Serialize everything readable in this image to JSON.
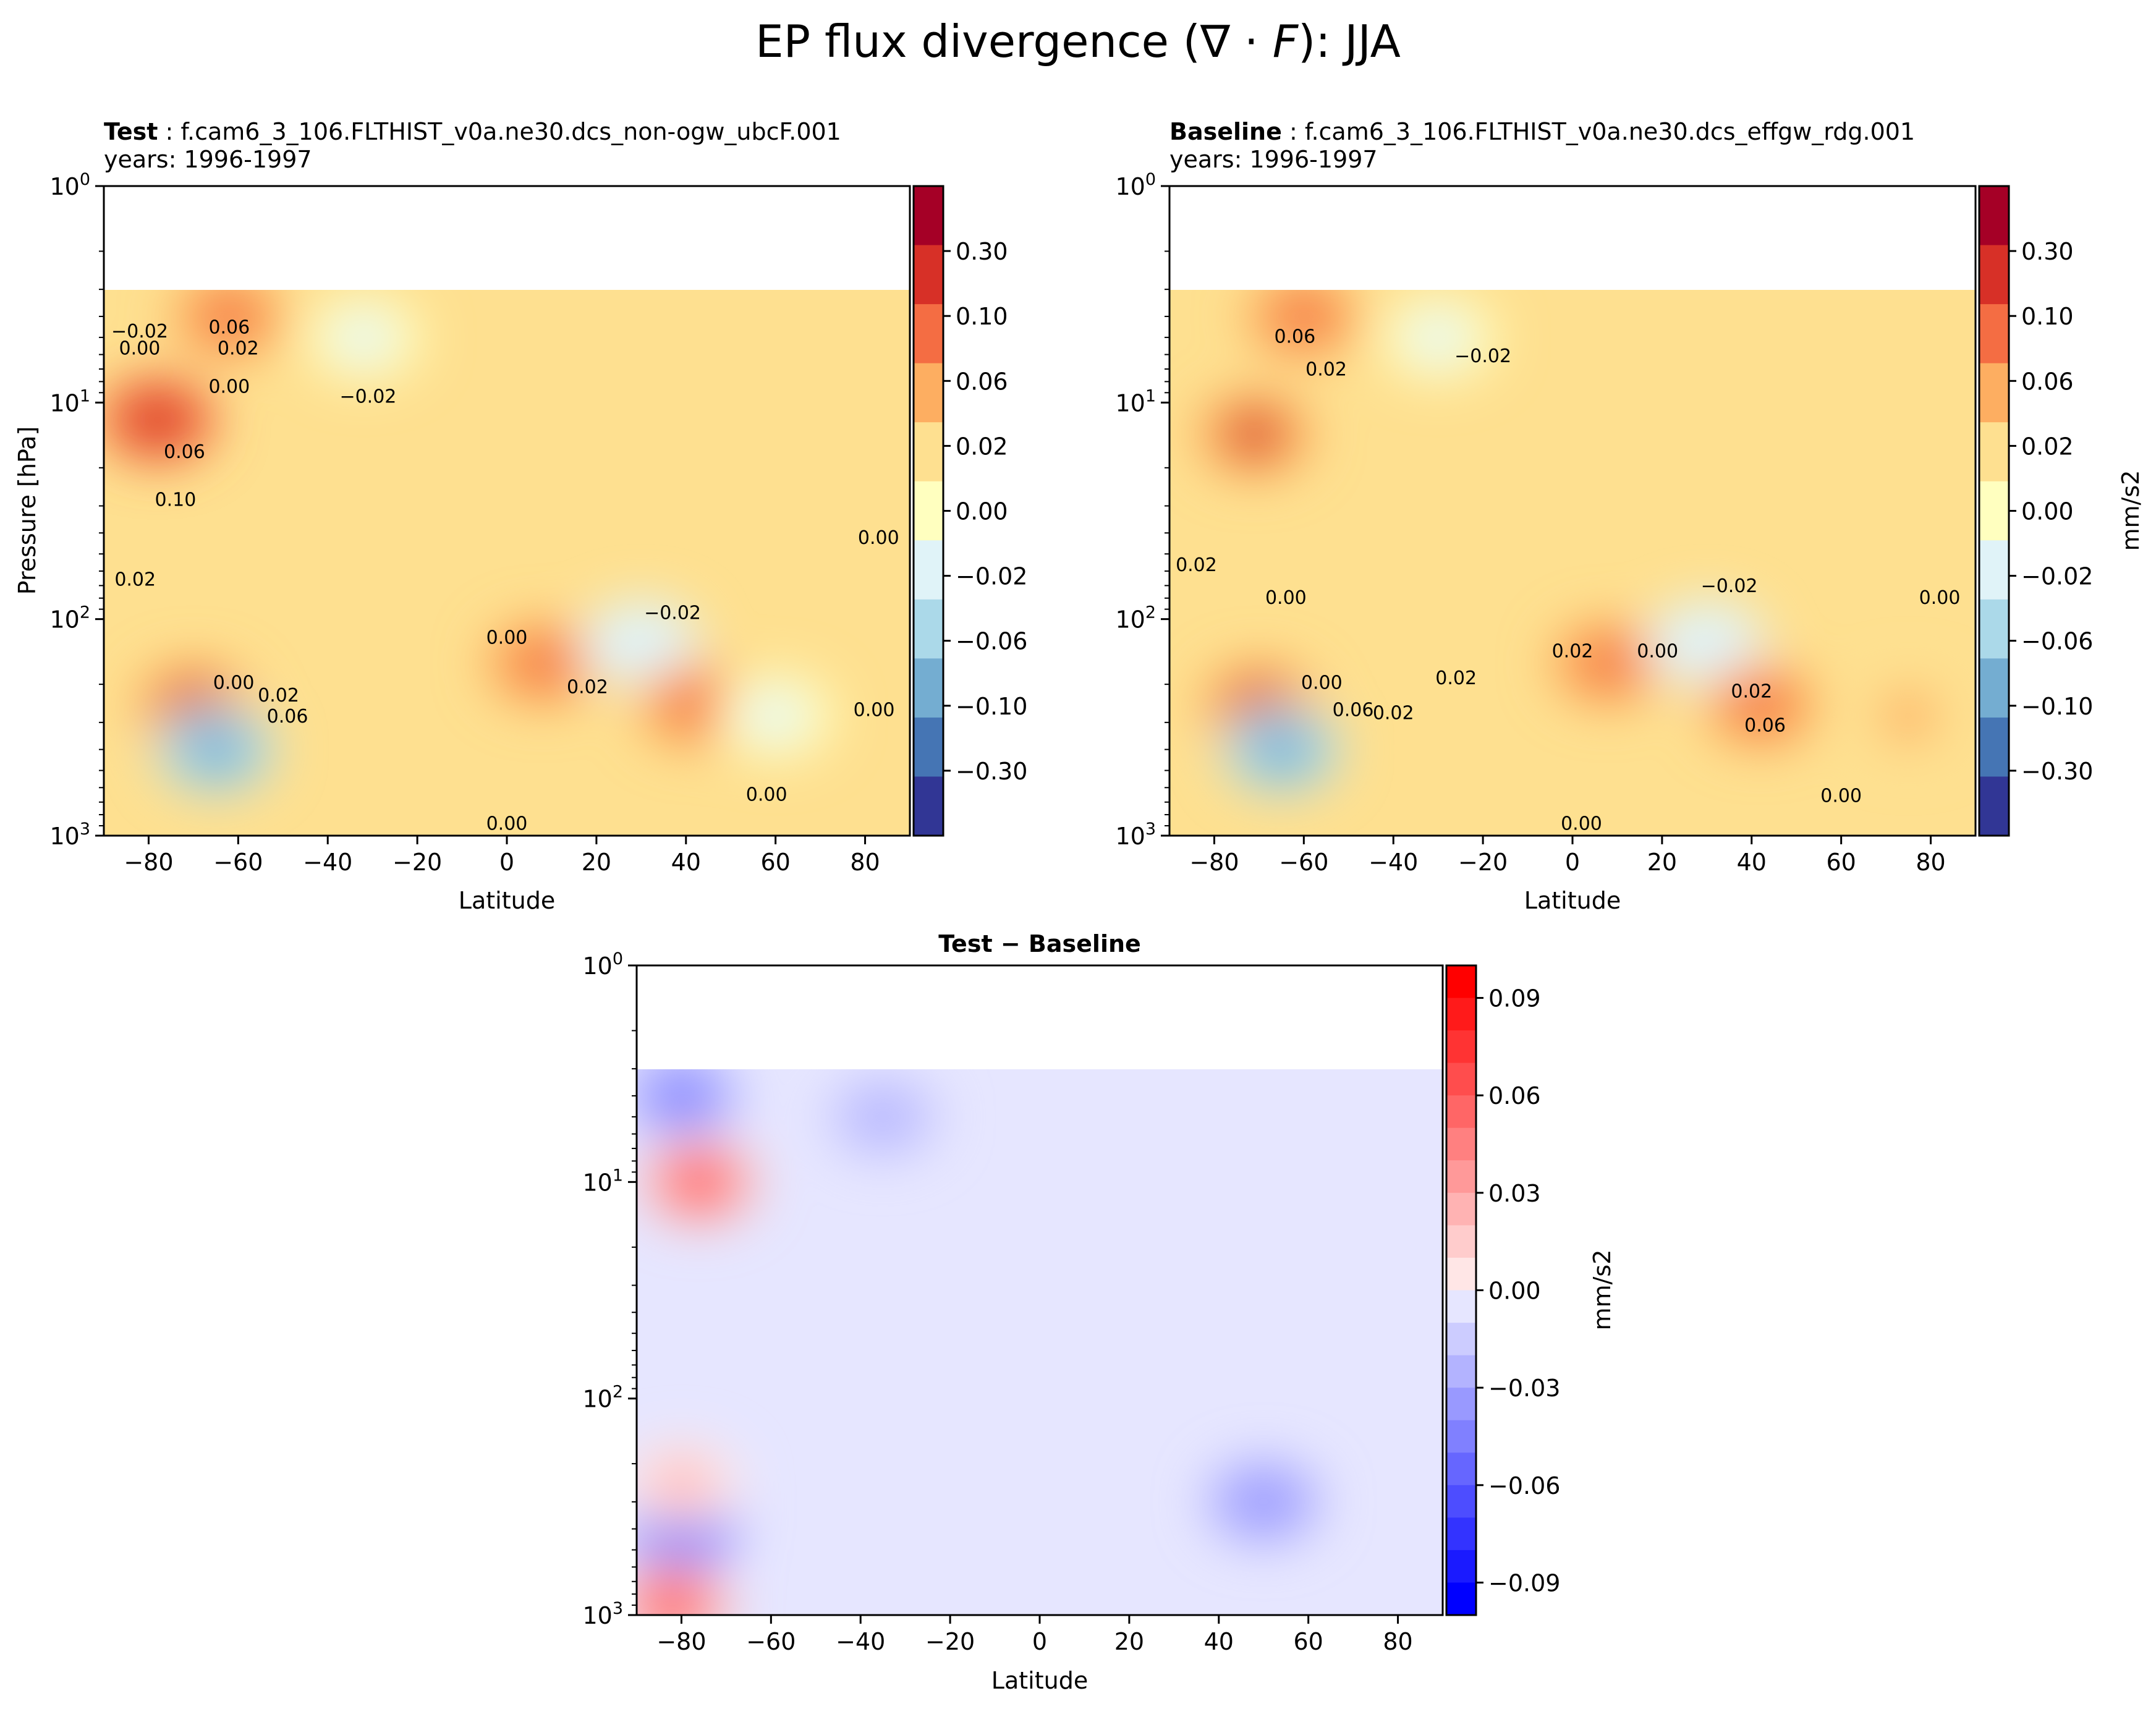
{
  "figure": {
    "title_main": "EP flux divergence (",
    "title_nabla": "∇",
    "title_dot": " · ",
    "title_F": "F",
    "title_tail": "): JJA"
  },
  "chart_data": [
    {
      "id": "test",
      "type": "heatmap",
      "title_bold": "Test",
      "title_rest": " : f.cam6_3_106.FLTHIST_v0a.ne30.dcs_non-ogw_ubcF.001",
      "subtitle": "years: 1996-1997",
      "xlabel": "Latitude",
      "ylabel": "Pressure [hPa]",
      "xlim": [
        -90,
        90
      ],
      "ylim": [
        1000,
        1
      ],
      "yscale": "log",
      "x_ticks": [
        -80,
        -60,
        -40,
        -20,
        0,
        20,
        40,
        60,
        80
      ],
      "x_tick_labels": [
        "−80",
        "−60",
        "−40",
        "−20",
        "0",
        "20",
        "40",
        "60",
        "80"
      ],
      "y_ticks": [
        1,
        10,
        100,
        1000
      ],
      "y_tick_bases": [
        "10",
        "10",
        "10",
        "10"
      ],
      "y_tick_exps": [
        "0",
        "1",
        "2",
        "3"
      ],
      "colorbar": {
        "levels": [
          -0.3,
          -0.1,
          -0.06,
          -0.02,
          0.0,
          0.02,
          0.06,
          0.1,
          0.3
        ],
        "tick_labels": [
          "−0.30",
          "−0.10",
          "−0.06",
          "−0.02",
          "0.00",
          "0.02",
          "0.06",
          "0.10",
          "0.30"
        ],
        "colors": [
          "#313695",
          "#4575b4",
          "#74add1",
          "#abd9e9",
          "#e0f3f8",
          "#ffffbf",
          "#fee090",
          "#fdae61",
          "#f46d43",
          "#d73027",
          "#a50026"
        ],
        "label": ""
      },
      "features": [
        {
          "lat": -78,
          "p": 12,
          "value": 0.15
        },
        {
          "lat": -62,
          "p": 4,
          "value": 0.08
        },
        {
          "lat": -70,
          "p": 250,
          "value": 0.12
        },
        {
          "lat": -65,
          "p": 400,
          "value": -0.15
        },
        {
          "lat": -32,
          "p": 5,
          "value": -0.03
        },
        {
          "lat": 8,
          "p": 160,
          "value": 0.07
        },
        {
          "lat": 30,
          "p": 130,
          "value": -0.05
        },
        {
          "lat": 42,
          "p": 250,
          "value": 0.06
        },
        {
          "lat": 60,
          "p": 280,
          "value": -0.04
        }
      ],
      "contour_labels": [
        {
          "text": "−0.02",
          "lat": -82,
          "p": 5
        },
        {
          "text": "0.00",
          "lat": -82,
          "p": 6
        },
        {
          "text": "0.06",
          "lat": -62,
          "p": 4.8
        },
        {
          "text": "0.02",
          "lat": -60,
          "p": 6
        },
        {
          "text": "0.00",
          "lat": -62,
          "p": 9
        },
        {
          "text": "−0.02",
          "lat": -31,
          "p": 10
        },
        {
          "text": "0.06",
          "lat": -72,
          "p": 18
        },
        {
          "text": "0.10",
          "lat": -74,
          "p": 30
        },
        {
          "text": "0.02",
          "lat": -83,
          "p": 70
        },
        {
          "text": "0.00",
          "lat": -61,
          "p": 210
        },
        {
          "text": "0.02",
          "lat": -51,
          "p": 240
        },
        {
          "text": "0.06",
          "lat": -49,
          "p": 300
        },
        {
          "text": "0.00",
          "lat": 0,
          "p": 130
        },
        {
          "text": "0.02",
          "lat": 18,
          "p": 220
        },
        {
          "text": "−0.02",
          "lat": 37,
          "p": 100
        },
        {
          "text": "0.00",
          "lat": 83,
          "p": 45
        },
        {
          "text": "0.00",
          "lat": 82,
          "p": 280
        },
        {
          "text": "0.00",
          "lat": 58,
          "p": 690
        },
        {
          "text": "0.00",
          "lat": 0,
          "p": 940
        }
      ]
    },
    {
      "id": "baseline",
      "type": "heatmap",
      "title_bold": "Baseline",
      "title_rest": " : f.cam6_3_106.FLTHIST_v0a.ne30.dcs_effgw_rdg.001",
      "subtitle": "years: 1996-1997",
      "xlabel": "Latitude",
      "ylabel": "",
      "xlim": [
        -90,
        90
      ],
      "ylim": [
        1000,
        1
      ],
      "yscale": "log",
      "x_ticks": [
        -80,
        -60,
        -40,
        -20,
        0,
        20,
        40,
        60,
        80
      ],
      "x_tick_labels": [
        "−80",
        "−60",
        "−40",
        "−20",
        "0",
        "20",
        "40",
        "60",
        "80"
      ],
      "y_ticks": [
        1,
        10,
        100,
        1000
      ],
      "y_tick_bases": [
        "10",
        "10",
        "10",
        "10"
      ],
      "y_tick_exps": [
        "0",
        "1",
        "2",
        "3"
      ],
      "colorbar": {
        "levels": [
          -0.3,
          -0.1,
          -0.06,
          -0.02,
          0.0,
          0.02,
          0.06,
          0.1,
          0.3
        ],
        "tick_labels": [
          "−0.30",
          "−0.10",
          "−0.06",
          "−0.02",
          "0.00",
          "0.02",
          "0.06",
          "0.10",
          "0.30"
        ],
        "colors": [
          "#313695",
          "#4575b4",
          "#74add1",
          "#abd9e9",
          "#e0f3f8",
          "#ffffbf",
          "#fee090",
          "#fdae61",
          "#f46d43",
          "#d73027",
          "#a50026"
        ],
        "label": "mm/s2"
      },
      "features": [
        {
          "lat": -71,
          "p": 14,
          "value": 0.12
        },
        {
          "lat": -60,
          "p": 4,
          "value": 0.07
        },
        {
          "lat": -70,
          "p": 250,
          "value": 0.12
        },
        {
          "lat": -65,
          "p": 400,
          "value": -0.15
        },
        {
          "lat": -30,
          "p": 5,
          "value": -0.03
        },
        {
          "lat": 8,
          "p": 160,
          "value": 0.07
        },
        {
          "lat": 30,
          "p": 130,
          "value": -0.05
        },
        {
          "lat": 42,
          "p": 250,
          "value": 0.06
        },
        {
          "lat": 75,
          "p": 280,
          "value": 0.04
        }
      ],
      "contour_labels": [
        {
          "text": "0.06",
          "lat": -62,
          "p": 5.3
        },
        {
          "text": "0.02",
          "lat": -55,
          "p": 7.5
        },
        {
          "text": "−0.02",
          "lat": -20,
          "p": 6.5
        },
        {
          "text": "0.02",
          "lat": -84,
          "p": 60
        },
        {
          "text": "0.00",
          "lat": -64,
          "p": 85
        },
        {
          "text": "−0.02",
          "lat": 35,
          "p": 75
        },
        {
          "text": "0.00",
          "lat": 82,
          "p": 85
        },
        {
          "text": "0.02",
          "lat": 0,
          "p": 150
        },
        {
          "text": "0.00",
          "lat": 19,
          "p": 150
        },
        {
          "text": "0.00",
          "lat": -56,
          "p": 210
        },
        {
          "text": "0.06",
          "lat": -49,
          "p": 280
        },
        {
          "text": "0.02",
          "lat": -40,
          "p": 290
        },
        {
          "text": "0.02",
          "lat": -26,
          "p": 200
        },
        {
          "text": "0.02",
          "lat": 40,
          "p": 230
        },
        {
          "text": "0.06",
          "lat": 43,
          "p": 330
        },
        {
          "text": "0.00",
          "lat": 60,
          "p": 700
        },
        {
          "text": "0.00",
          "lat": 2,
          "p": 940
        }
      ]
    },
    {
      "id": "diff",
      "type": "heatmap",
      "title_bold": "Test − Baseline",
      "title_rest": "",
      "subtitle": "",
      "xlabel": "Latitude",
      "ylabel": "",
      "xlim": [
        -90,
        90
      ],
      "ylim": [
        1000,
        1
      ],
      "yscale": "log",
      "x_ticks": [
        -80,
        -60,
        -40,
        -20,
        0,
        20,
        40,
        60,
        80
      ],
      "x_tick_labels": [
        "−80",
        "−60",
        "−40",
        "−20",
        "0",
        "20",
        "40",
        "60",
        "80"
      ],
      "y_ticks": [
        1,
        10,
        100,
        1000
      ],
      "y_tick_bases": [
        "10",
        "10",
        "10",
        "10"
      ],
      "y_tick_exps": [
        "0",
        "1",
        "2",
        "3"
      ],
      "colorbar": {
        "levels": [
          -0.1,
          -0.09,
          -0.08,
          -0.07,
          -0.06,
          -0.05,
          -0.04,
          -0.03,
          -0.02,
          -0.01,
          0.0,
          0.01,
          0.02,
          0.03,
          0.04,
          0.05,
          0.06,
          0.07,
          0.08,
          0.09,
          0.1
        ],
        "tick_values": [
          -0.09,
          -0.06,
          -0.03,
          0.0,
          0.03,
          0.06,
          0.09
        ],
        "tick_labels": [
          "−0.09",
          "−0.06",
          "−0.03",
          "0.00",
          "0.03",
          "0.06",
          "0.09"
        ],
        "colors": [
          "#0000ff",
          "#1a1aff",
          "#3333ff",
          "#4d4dff",
          "#6666ff",
          "#8080ff",
          "#9999ff",
          "#b3b3ff",
          "#ccccff",
          "#e6e6ff",
          "#ffe6e6",
          "#ffcccc",
          "#ffb3b3",
          "#ff9999",
          "#ff8080",
          "#ff6666",
          "#ff4d4d",
          "#ff3333",
          "#ff1a1a",
          "#ff0000"
        ],
        "label": "mm/s2"
      },
      "features": [
        {
          "lat": -76,
          "p": 10,
          "value": 0.07
        },
        {
          "lat": -80,
          "p": 4,
          "value": -0.04
        },
        {
          "lat": -80,
          "p": 400,
          "value": -0.06
        },
        {
          "lat": -80,
          "p": 250,
          "value": 0.03
        },
        {
          "lat": -82,
          "p": 900,
          "value": 0.07
        },
        {
          "lat": -35,
          "p": 5,
          "value": -0.015
        },
        {
          "lat": 50,
          "p": 300,
          "value": -0.03
        }
      ]
    }
  ]
}
